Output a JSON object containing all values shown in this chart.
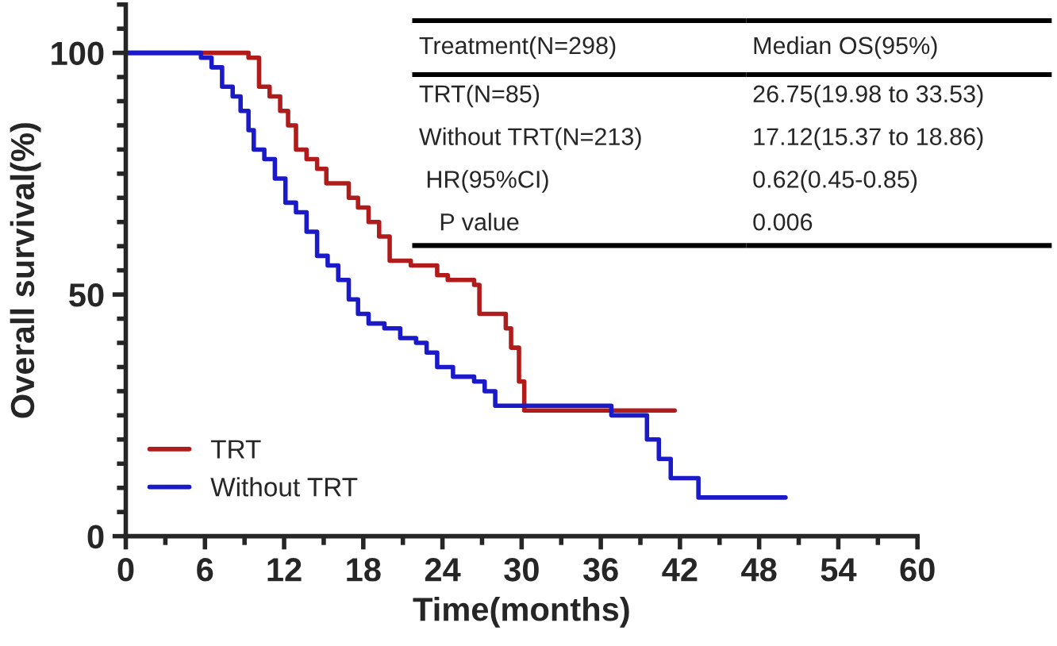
{
  "chart_data": {
    "type": "step",
    "xlabel": "Time(months)",
    "ylabel": "Overall survival(%)",
    "xlim": [
      0,
      60
    ],
    "xticks": [
      0,
      6,
      12,
      18,
      24,
      30,
      36,
      42,
      48,
      54,
      60
    ],
    "ylim": [
      0,
      110
    ],
    "yticks": [
      0,
      50,
      100
    ],
    "grid": false,
    "legend": "bottom left",
    "annotations": [
      "Treatment(N=298)",
      "Median OS(95%)",
      "TRT(N=85)",
      "26.75(19.98 to 33.53)",
      "Without TRT(N=213)",
      "17.12(15.37 to 18.86)",
      " HR(95%CI)",
      "0.62(0.45-0.85)",
      "   P value",
      "0.006"
    ],
    "series": [
      {
        "name": "TRT",
        "color": "#b01c1c",
        "x": [
          0,
          8.9,
          9.3,
          10.1,
          10.9,
          11.7,
          12.3,
          12.9,
          13.7,
          14.5,
          15.2,
          16.9,
          17.6,
          18.4,
          19.2,
          20,
          21.6,
          23.6,
          24.4,
          26.4,
          26.8,
          28.8,
          29.2,
          29.8,
          30.2,
          41.6
        ],
        "values": [
          100,
          100,
          99,
          93,
          91,
          88,
          85,
          80,
          78,
          76,
          73,
          70,
          68,
          65,
          62,
          57,
          56,
          54,
          53,
          52,
          46,
          43,
          39,
          32,
          26,
          26
        ]
      },
      {
        "name": "Without TRT",
        "color": "#1a1ac8",
        "x": [
          0,
          5.7,
          6.5,
          7.3,
          8.1,
          8.7,
          9.3,
          9.7,
          10.5,
          11.3,
          12.1,
          12.9,
          13.7,
          14.5,
          15.3,
          16.1,
          16.9,
          17.6,
          18.4,
          19.6,
          20.8,
          22,
          22.8,
          23.6,
          24.8,
          26.4,
          27.2,
          28,
          36.8,
          39.5,
          40.4,
          41.3,
          43.4,
          50
        ],
        "values": [
          100,
          99,
          97,
          93,
          91,
          88,
          84,
          80,
          78,
          74,
          69,
          67,
          63,
          58,
          56,
          53,
          49,
          46,
          44,
          43,
          41,
          40,
          38,
          35,
          33,
          32,
          30,
          27,
          25,
          20,
          16,
          12,
          8,
          8
        ]
      }
    ]
  }
}
